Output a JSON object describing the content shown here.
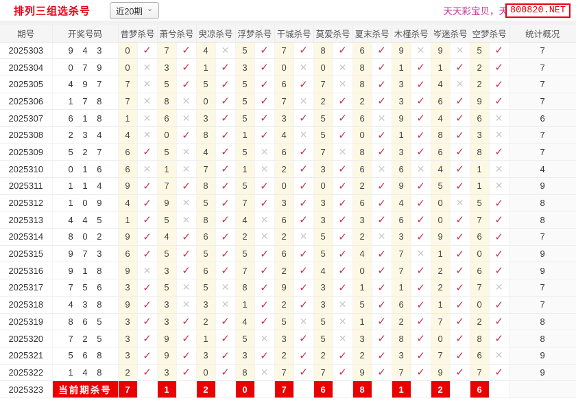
{
  "page": {
    "title": "排列三组选杀号",
    "range_dropdown": "近20期",
    "promo_text": "天天彩宝贝，天",
    "promo_badge": "800820.NET"
  },
  "icons": {
    "hit": "✓",
    "miss": "✕",
    "chevron_down": "⌄"
  },
  "colors": {
    "accent_red": "#e60012",
    "check": "#c43052",
    "cross": "#c9c9c9",
    "kill_cell_bg": "#fcf8e3",
    "current_cell_bg": "#ea0000",
    "promo_pink": "#cc3399"
  },
  "table": {
    "columns": [
      "期号",
      "开奖号码",
      "昔梦杀号",
      "萧兮杀号",
      "臾凉杀号",
      "浮梦杀号",
      "干城杀号",
      "莫爱杀号",
      "夏末杀号",
      "木槿杀号",
      "岑迷杀号",
      "空梦杀号",
      "统计概况"
    ],
    "rows": [
      {
        "period": "2025303",
        "code": "943",
        "kills": [
          [
            "0",
            true
          ],
          [
            "7",
            true
          ],
          [
            "4",
            false
          ],
          [
            "5",
            true
          ],
          [
            "7",
            true
          ],
          [
            "8",
            true
          ],
          [
            "6",
            true
          ],
          [
            "9",
            false
          ],
          [
            "9",
            false
          ],
          [
            "5",
            true
          ]
        ],
        "stat": "7"
      },
      {
        "period": "2025304",
        "code": "079",
        "kills": [
          [
            "0",
            false
          ],
          [
            "3",
            true
          ],
          [
            "1",
            true
          ],
          [
            "3",
            true
          ],
          [
            "0",
            false
          ],
          [
            "0",
            false
          ],
          [
            "8",
            true
          ],
          [
            "1",
            true
          ],
          [
            "1",
            true
          ],
          [
            "2",
            true
          ]
        ],
        "stat": "7"
      },
      {
        "period": "2025305",
        "code": "497",
        "kills": [
          [
            "7",
            false
          ],
          [
            "5",
            true
          ],
          [
            "5",
            true
          ],
          [
            "5",
            true
          ],
          [
            "6",
            true
          ],
          [
            "7",
            false
          ],
          [
            "8",
            true
          ],
          [
            "3",
            true
          ],
          [
            "4",
            false
          ],
          [
            "2",
            true
          ]
        ],
        "stat": "7"
      },
      {
        "period": "2025306",
        "code": "178",
        "kills": [
          [
            "7",
            false
          ],
          [
            "8",
            false
          ],
          [
            "0",
            true
          ],
          [
            "5",
            true
          ],
          [
            "7",
            false
          ],
          [
            "2",
            true
          ],
          [
            "2",
            true
          ],
          [
            "3",
            true
          ],
          [
            "6",
            true
          ],
          [
            "9",
            true
          ]
        ],
        "stat": "7"
      },
      {
        "period": "2025307",
        "code": "618",
        "kills": [
          [
            "1",
            false
          ],
          [
            "6",
            false
          ],
          [
            "3",
            true
          ],
          [
            "5",
            true
          ],
          [
            "3",
            true
          ],
          [
            "5",
            true
          ],
          [
            "6",
            false
          ],
          [
            "9",
            true
          ],
          [
            "4",
            true
          ],
          [
            "6",
            false
          ]
        ],
        "stat": "6"
      },
      {
        "period": "2025308",
        "code": "234",
        "kills": [
          [
            "4",
            false
          ],
          [
            "0",
            true
          ],
          [
            "8",
            true
          ],
          [
            "1",
            true
          ],
          [
            "4",
            false
          ],
          [
            "5",
            true
          ],
          [
            "0",
            true
          ],
          [
            "1",
            true
          ],
          [
            "8",
            true
          ],
          [
            "3",
            false
          ]
        ],
        "stat": "7"
      },
      {
        "period": "2025309",
        "code": "527",
        "kills": [
          [
            "6",
            true
          ],
          [
            "5",
            false
          ],
          [
            "4",
            true
          ],
          [
            "5",
            false
          ],
          [
            "6",
            true
          ],
          [
            "7",
            false
          ],
          [
            "8",
            true
          ],
          [
            "3",
            true
          ],
          [
            "6",
            true
          ],
          [
            "8",
            true
          ]
        ],
        "stat": "7"
      },
      {
        "period": "2025310",
        "code": "016",
        "kills": [
          [
            "6",
            false
          ],
          [
            "1",
            false
          ],
          [
            "7",
            true
          ],
          [
            "1",
            false
          ],
          [
            "2",
            true
          ],
          [
            "3",
            true
          ],
          [
            "6",
            false
          ],
          [
            "6",
            false
          ],
          [
            "4",
            true
          ],
          [
            "1",
            false
          ]
        ],
        "stat": "4"
      },
      {
        "period": "2025311",
        "code": "114",
        "kills": [
          [
            "9",
            true
          ],
          [
            "7",
            true
          ],
          [
            "8",
            true
          ],
          [
            "5",
            true
          ],
          [
            "0",
            true
          ],
          [
            "0",
            true
          ],
          [
            "2",
            true
          ],
          [
            "9",
            true
          ],
          [
            "5",
            true
          ],
          [
            "1",
            false
          ]
        ],
        "stat": "9"
      },
      {
        "period": "2025312",
        "code": "109",
        "kills": [
          [
            "4",
            true
          ],
          [
            "9",
            false
          ],
          [
            "5",
            true
          ],
          [
            "7",
            true
          ],
          [
            "3",
            true
          ],
          [
            "3",
            true
          ],
          [
            "6",
            true
          ],
          [
            "4",
            true
          ],
          [
            "0",
            false
          ],
          [
            "5",
            true
          ]
        ],
        "stat": "8"
      },
      {
        "period": "2025313",
        "code": "445",
        "kills": [
          [
            "1",
            true
          ],
          [
            "5",
            false
          ],
          [
            "8",
            true
          ],
          [
            "4",
            false
          ],
          [
            "6",
            true
          ],
          [
            "3",
            true
          ],
          [
            "3",
            true
          ],
          [
            "6",
            true
          ],
          [
            "0",
            true
          ],
          [
            "7",
            true
          ]
        ],
        "stat": "8"
      },
      {
        "period": "2025314",
        "code": "802",
        "kills": [
          [
            "9",
            true
          ],
          [
            "4",
            true
          ],
          [
            "6",
            true
          ],
          [
            "2",
            false
          ],
          [
            "2",
            false
          ],
          [
            "5",
            true
          ],
          [
            "2",
            false
          ],
          [
            "3",
            true
          ],
          [
            "9",
            true
          ],
          [
            "6",
            true
          ]
        ],
        "stat": "7"
      },
      {
        "period": "2025315",
        "code": "973",
        "kills": [
          [
            "6",
            true
          ],
          [
            "5",
            true
          ],
          [
            "5",
            true
          ],
          [
            "5",
            true
          ],
          [
            "6",
            true
          ],
          [
            "5",
            true
          ],
          [
            "4",
            true
          ],
          [
            "7",
            false
          ],
          [
            "1",
            true
          ],
          [
            "0",
            true
          ]
        ],
        "stat": "9"
      },
      {
        "period": "2025316",
        "code": "918",
        "kills": [
          [
            "9",
            false
          ],
          [
            "3",
            true
          ],
          [
            "6",
            true
          ],
          [
            "7",
            true
          ],
          [
            "2",
            true
          ],
          [
            "4",
            true
          ],
          [
            "0",
            true
          ],
          [
            "7",
            true
          ],
          [
            "2",
            true
          ],
          [
            "6",
            true
          ]
        ],
        "stat": "9"
      },
      {
        "period": "2025317",
        "code": "756",
        "kills": [
          [
            "3",
            true
          ],
          [
            "5",
            false
          ],
          [
            "5",
            false
          ],
          [
            "8",
            true
          ],
          [
            "9",
            true
          ],
          [
            "3",
            true
          ],
          [
            "1",
            true
          ],
          [
            "1",
            true
          ],
          [
            "2",
            true
          ],
          [
            "7",
            false
          ]
        ],
        "stat": "7"
      },
      {
        "period": "2025318",
        "code": "438",
        "kills": [
          [
            "9",
            true
          ],
          [
            "3",
            false
          ],
          [
            "3",
            false
          ],
          [
            "1",
            true
          ],
          [
            "2",
            true
          ],
          [
            "3",
            false
          ],
          [
            "5",
            true
          ],
          [
            "6",
            true
          ],
          [
            "1",
            true
          ],
          [
            "0",
            true
          ]
        ],
        "stat": "7"
      },
      {
        "period": "2025319",
        "code": "865",
        "kills": [
          [
            "3",
            true
          ],
          [
            "3",
            true
          ],
          [
            "2",
            true
          ],
          [
            "4",
            true
          ],
          [
            "5",
            false
          ],
          [
            "5",
            false
          ],
          [
            "1",
            true
          ],
          [
            "2",
            true
          ],
          [
            "7",
            true
          ],
          [
            "2",
            true
          ]
        ],
        "stat": "8"
      },
      {
        "period": "2025320",
        "code": "725",
        "kills": [
          [
            "3",
            true
          ],
          [
            "9",
            true
          ],
          [
            "1",
            true
          ],
          [
            "5",
            false
          ],
          [
            "3",
            true
          ],
          [
            "5",
            false
          ],
          [
            "3",
            true
          ],
          [
            "8",
            true
          ],
          [
            "0",
            true
          ],
          [
            "8",
            true
          ]
        ],
        "stat": "8"
      },
      {
        "period": "2025321",
        "code": "568",
        "kills": [
          [
            "3",
            true
          ],
          [
            "9",
            true
          ],
          [
            "3",
            true
          ],
          [
            "3",
            true
          ],
          [
            "2",
            true
          ],
          [
            "2",
            true
          ],
          [
            "2",
            true
          ],
          [
            "3",
            true
          ],
          [
            "7",
            true
          ],
          [
            "6",
            false
          ]
        ],
        "stat": "9"
      },
      {
        "period": "2025322",
        "code": "148",
        "kills": [
          [
            "2",
            true
          ],
          [
            "3",
            true
          ],
          [
            "0",
            true
          ],
          [
            "8",
            false
          ],
          [
            "7",
            true
          ],
          [
            "7",
            true
          ],
          [
            "9",
            true
          ],
          [
            "7",
            true
          ],
          [
            "9",
            true
          ],
          [
            "7",
            true
          ]
        ],
        "stat": "9"
      }
    ],
    "current_row": {
      "period": "2025323",
      "label": "当前期杀号",
      "kills": [
        "7",
        "1",
        "2",
        "0",
        "7",
        "6",
        "8",
        "1",
        "2",
        "6"
      ],
      "stat": ""
    }
  }
}
